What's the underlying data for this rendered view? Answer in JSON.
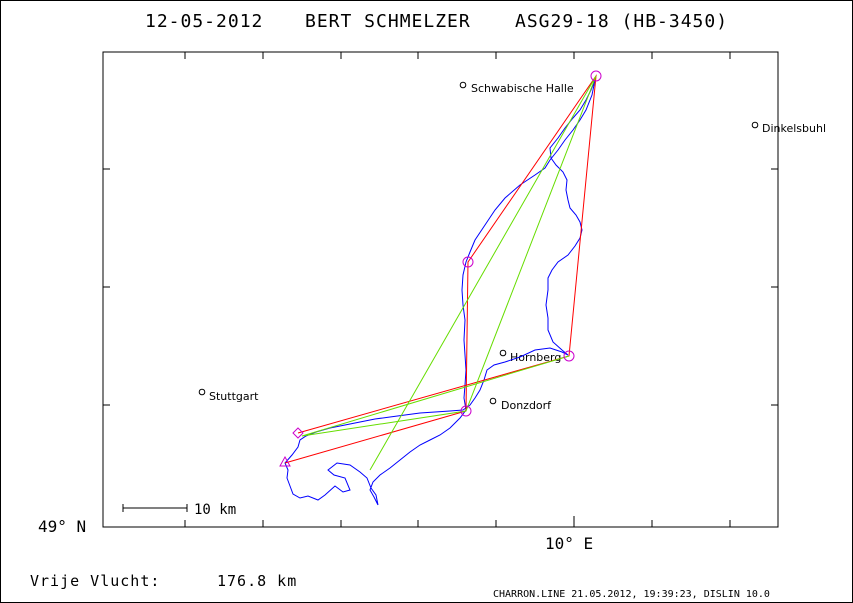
{
  "header": {
    "date": "12-05-2012",
    "pilot": "BERT SCHMELZER",
    "glider": "ASG29-18 (HB-3450)"
  },
  "axes": {
    "y_label": "49° N",
    "x_label": "10° E",
    "scale_label": "10 km"
  },
  "places": [
    {
      "name": "Schwabische Halle"
    },
    {
      "name": "Dinkelsbuhl"
    },
    {
      "name": "Stuttgart"
    },
    {
      "name": "Hornberg"
    },
    {
      "name": "Donzdorf"
    }
  ],
  "result": {
    "label": "Vrije Vlucht:",
    "distance": "176.8 km"
  },
  "footer": "CHARRON.LINE 21.05.2012, 19:39:23, DISLIN 10.0",
  "colors": {
    "track": "#0000ff",
    "task": "#ff0000",
    "optimized": "#66dd00",
    "turnpoint": "#cc00cc",
    "frame": "#000000"
  },
  "chart_data": {
    "type": "map",
    "title": "12-05-2012   BERT SCHMELZER   ASG29-18 (HB-3450)",
    "xlabel": "10° E",
    "ylabel": "49° N",
    "grid": false,
    "legend": "none",
    "total_distance_km": 176.8
  }
}
